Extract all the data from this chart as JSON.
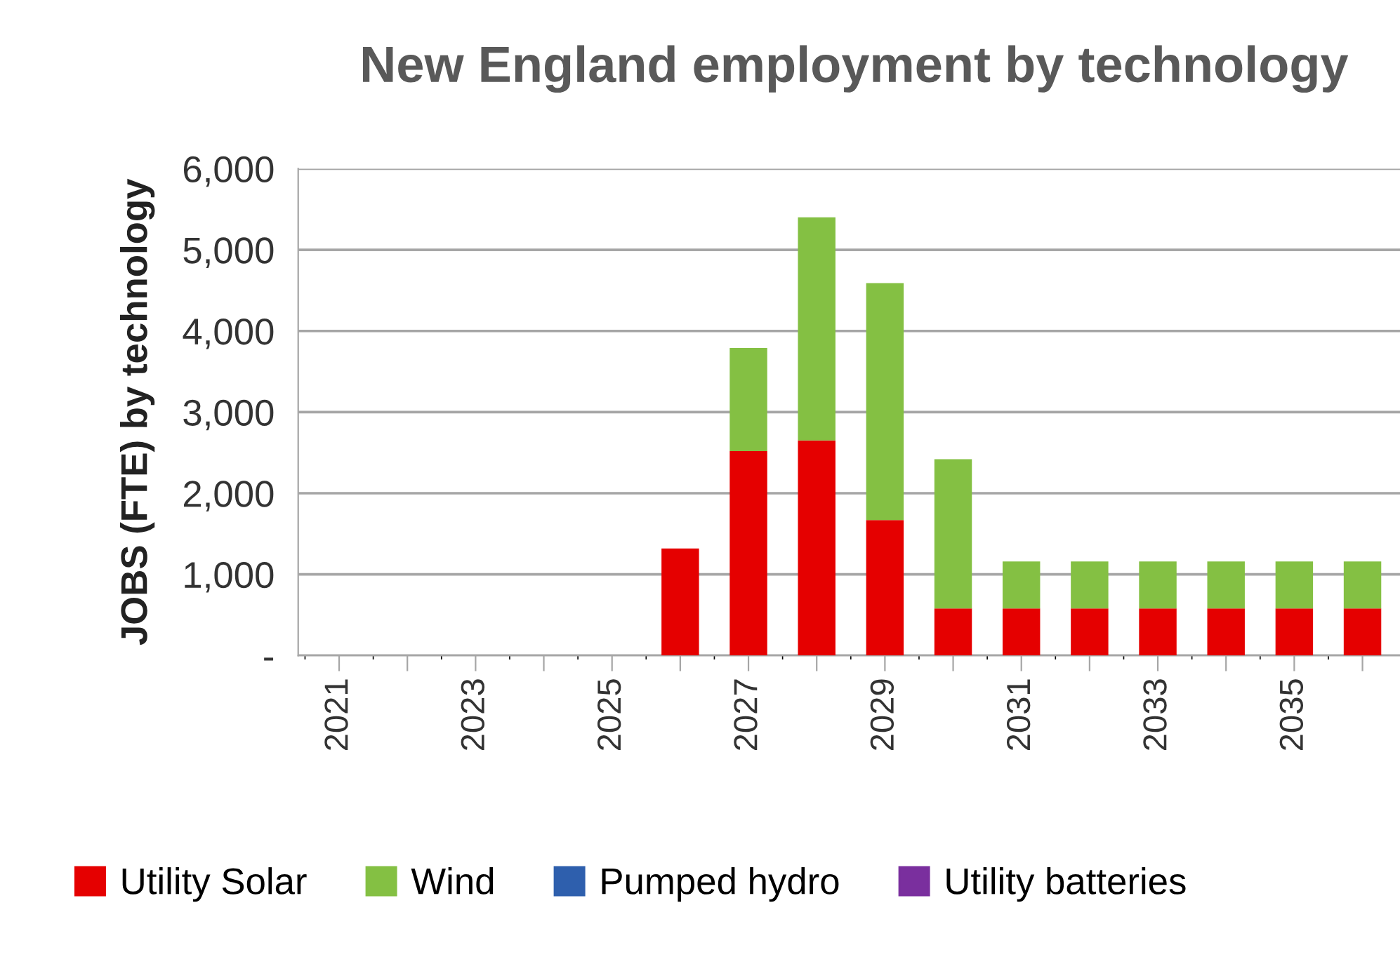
{
  "chart_data": {
    "type": "bar",
    "title": "New England employment by technology",
    "ylabel": "JOBS (FTE) by technology",
    "categories": [
      "2021",
      null,
      "2023",
      null,
      "2025",
      null,
      "2027",
      null,
      "2029",
      null,
      "2031",
      null,
      "2033",
      null,
      "2035",
      null
    ],
    "stacked": true,
    "series": [
      {
        "name": "Utility Solar",
        "color": "#e50000",
        "values": [
          0,
          0,
          0,
          0,
          0,
          1320,
          2520,
          2650,
          1670,
          580,
          580,
          580,
          580,
          580,
          580,
          580
        ]
      },
      {
        "name": "Wind",
        "color": "#84c043",
        "values": [
          0,
          0,
          0,
          0,
          0,
          0,
          1270,
          2750,
          2920,
          1840,
          580,
          580,
          580,
          580,
          580,
          580
        ]
      },
      {
        "name": "Pumped hydro",
        "color": "#2e5fad",
        "values": [
          0,
          0,
          0,
          0,
          0,
          0,
          0,
          0,
          0,
          0,
          0,
          0,
          0,
          0,
          0,
          0
        ]
      },
      {
        "name": "Utility batteries",
        "color": "#7a2f9e",
        "values": [
          0,
          0,
          0,
          0,
          0,
          0,
          0,
          0,
          0,
          0,
          0,
          0,
          0,
          0,
          0,
          0
        ]
      }
    ],
    "ylim": [
      0,
      6000
    ],
    "yticks": [
      {
        "value": 0,
        "label": "-"
      },
      {
        "value": 1000,
        "label": "1,000"
      },
      {
        "value": 2000,
        "label": "2,000"
      },
      {
        "value": 3000,
        "label": "3,000"
      },
      {
        "value": 4000,
        "label": "4,000"
      },
      {
        "value": 5000,
        "label": "5,000"
      },
      {
        "value": 6000,
        "label": "6,000"
      }
    ],
    "grid": "y",
    "legend": "bottom"
  }
}
